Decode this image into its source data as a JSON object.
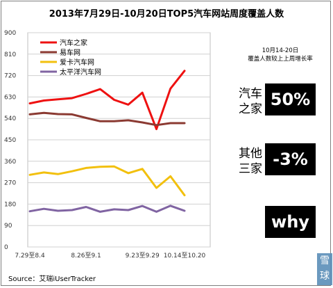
{
  "title": "2013年7月29日-10月20日TOP5汽车网站周度覆盖人数",
  "source": "Source：艾瑞iUserTracker",
  "chart_data": {
    "type": "line",
    "title": "2013年7月29日-10月20日TOP5汽车网站周度覆盖人数",
    "xlabel": "",
    "ylabel": "",
    "ylim": [
      0,
      900
    ],
    "yticks": [
      0,
      90,
      180,
      270,
      360,
      450,
      540,
      630,
      720,
      810,
      900
    ],
    "xtick_labels": [
      "7.29至8.4",
      "8.26至9.1",
      "9.23至9.29",
      "10.14至10.20"
    ],
    "xtick_index": [
      0,
      4,
      8,
      11
    ],
    "grid": true,
    "legend": "top-left",
    "series": [
      {
        "name": "汽车之家",
        "color": "#ee1111",
        "values": [
          603,
          615,
          620,
          625,
          643,
          663,
          618,
          598,
          648,
          495,
          665,
          740
        ]
      },
      {
        "name": "易车网",
        "color": "#8b3a32",
        "values": [
          557,
          563,
          558,
          557,
          542,
          528,
          528,
          532,
          523,
          512,
          520,
          520
        ]
      },
      {
        "name": "爱卡汽车网",
        "color": "#f2c00e",
        "values": [
          303,
          313,
          306,
          318,
          332,
          337,
          338,
          310,
          328,
          248,
          297,
          217
        ]
      },
      {
        "name": "太平洋汽车网",
        "color": "#8064a2",
        "values": [
          150,
          160,
          152,
          155,
          168,
          148,
          158,
          155,
          172,
          148,
          173,
          152
        ]
      }
    ]
  },
  "side_panel": {
    "note_line1": "10月14-20日",
    "note_line2": "覆盖人数较上上周增长率",
    "items": [
      {
        "label1": "汽车",
        "label2": "之家",
        "value": "50%"
      },
      {
        "label1": "其他",
        "label2": "三家",
        "value": "-3%"
      }
    ],
    "why": "why"
  },
  "watermark": {
    "line1": "雪",
    "line2": "球"
  }
}
